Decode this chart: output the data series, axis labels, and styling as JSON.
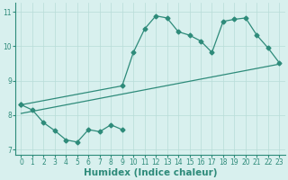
{
  "line1_x": [
    0,
    1,
    2,
    3,
    4,
    5,
    6,
    7,
    8,
    9
  ],
  "line1_y": [
    8.3,
    8.15,
    7.78,
    7.55,
    7.28,
    7.22,
    7.58,
    7.52,
    7.72,
    7.58
  ],
  "line2_x": [
    0,
    9,
    10,
    11,
    12,
    13,
    14,
    15,
    16,
    17,
    18,
    19,
    20,
    21,
    22,
    23
  ],
  "line2_y": [
    8.3,
    8.85,
    9.82,
    10.5,
    10.88,
    10.82,
    10.42,
    10.32,
    10.15,
    9.82,
    10.72,
    10.78,
    10.82,
    10.32,
    9.95,
    9.52
  ],
  "line3_x": [
    0,
    23
  ],
  "line3_y": [
    8.05,
    9.48
  ],
  "line_color": "#2e8b7a",
  "bg_color": "#d8f0ee",
  "grid_color": "#b8dcd8",
  "xlabel": "Humidex (Indice chaleur)",
  "xlim": [
    -0.5,
    23.5
  ],
  "ylim": [
    6.85,
    11.25
  ],
  "xticks": [
    0,
    1,
    2,
    3,
    4,
    5,
    6,
    7,
    8,
    9,
    10,
    11,
    12,
    13,
    14,
    15,
    16,
    17,
    18,
    19,
    20,
    21,
    22,
    23
  ],
  "yticks": [
    7,
    8,
    9,
    10,
    11
  ],
  "marker": "D",
  "markersize": 2.5,
  "linewidth": 0.9,
  "tick_fontsize": 5.5,
  "label_fontsize": 7.5
}
